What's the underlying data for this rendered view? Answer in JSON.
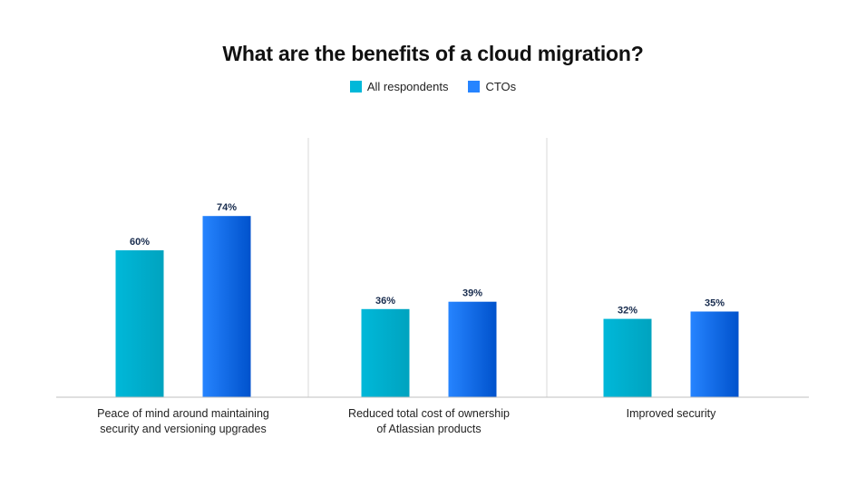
{
  "chart_data": {
    "type": "bar",
    "title": "What are the benefits of a cloud migration?",
    "categories": [
      [
        "Peace of mind around maintaining",
        "security and versioning upgrades"
      ],
      [
        "Reduced total cost of ownership",
        "of Atlassian products"
      ],
      [
        "Improved security"
      ]
    ],
    "series": [
      {
        "name": "All respondents",
        "values": [
          60,
          36,
          32
        ],
        "labels": [
          "60%",
          "36%",
          "32%"
        ],
        "color": "#00b8d9",
        "color_dark": "#00a3bf"
      },
      {
        "name": "CTOs",
        "values": [
          74,
          39,
          35
        ],
        "labels": [
          "74%",
          "39%",
          "35%"
        ],
        "color": "#2684ff",
        "color_dark": "#0052cc"
      }
    ],
    "ylim": [
      0,
      100
    ],
    "legend_position": "top-center",
    "grid": false
  }
}
